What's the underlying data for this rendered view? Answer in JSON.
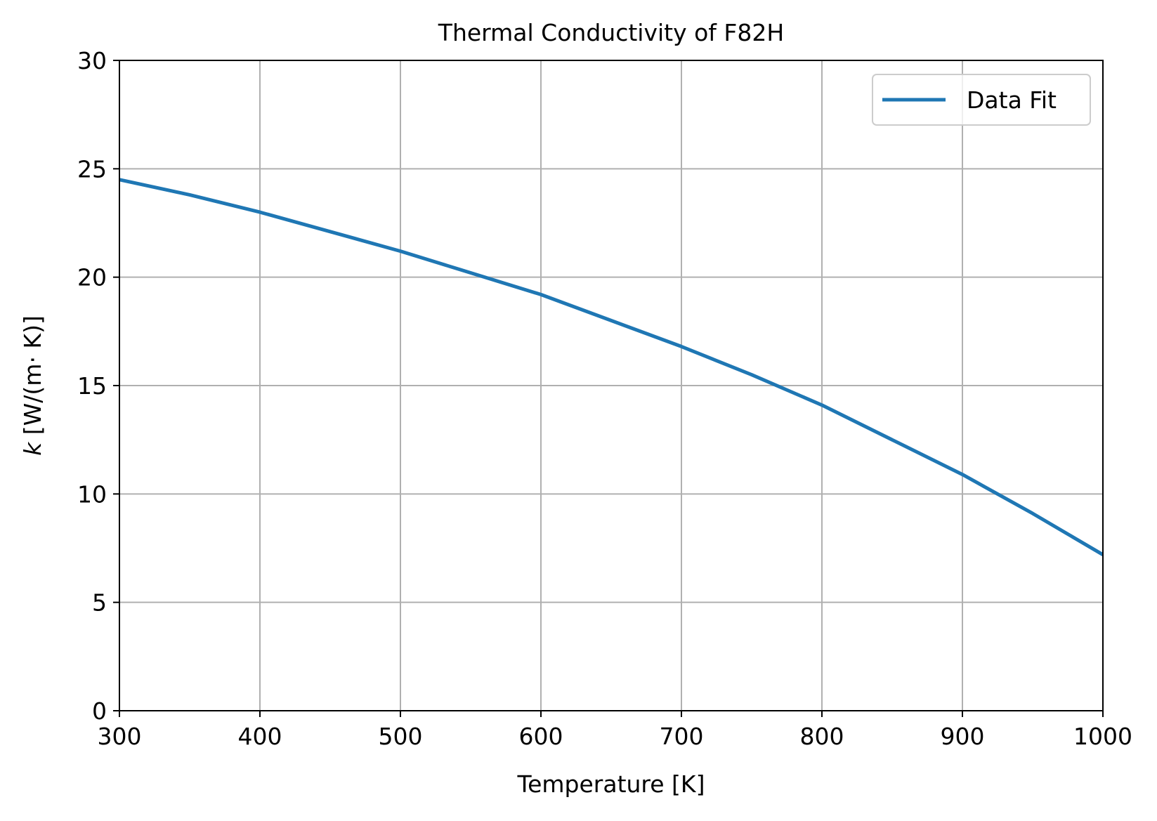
{
  "chart_data": {
    "type": "line",
    "title": "Thermal Conductivity of F82H",
    "xlabel": "Temperature [K]",
    "ylabel_var": "k",
    "ylabel_unit": " [W/(m· K)]",
    "xlim": [
      300,
      1000
    ],
    "ylim": [
      0,
      30
    ],
    "xticks": [
      300,
      400,
      500,
      600,
      700,
      800,
      900,
      1000
    ],
    "yticks": [
      0,
      5,
      10,
      15,
      20,
      25,
      30
    ],
    "xtick_labels": [
      "300",
      "400",
      "500",
      "600",
      "700",
      "800",
      "900",
      "1000"
    ],
    "ytick_labels": [
      "0",
      "5",
      "10",
      "15",
      "20",
      "25",
      "30"
    ],
    "grid": true,
    "legend_position": "top-right",
    "series": [
      {
        "name": "Data Fit",
        "color": "#1f77b4",
        "x": [
          300,
          350,
          400,
          450,
          500,
          550,
          600,
          650,
          700,
          750,
          800,
          850,
          900,
          950,
          1000
        ],
        "y": [
          24.5,
          23.8,
          23.0,
          22.1,
          21.2,
          20.2,
          19.2,
          18.0,
          16.8,
          15.5,
          14.1,
          12.5,
          10.9,
          9.1,
          7.2
        ]
      }
    ]
  },
  "colors": {
    "grid": "#b0b0b0",
    "axes": "#000000",
    "legend_border": "#cccccc"
  }
}
